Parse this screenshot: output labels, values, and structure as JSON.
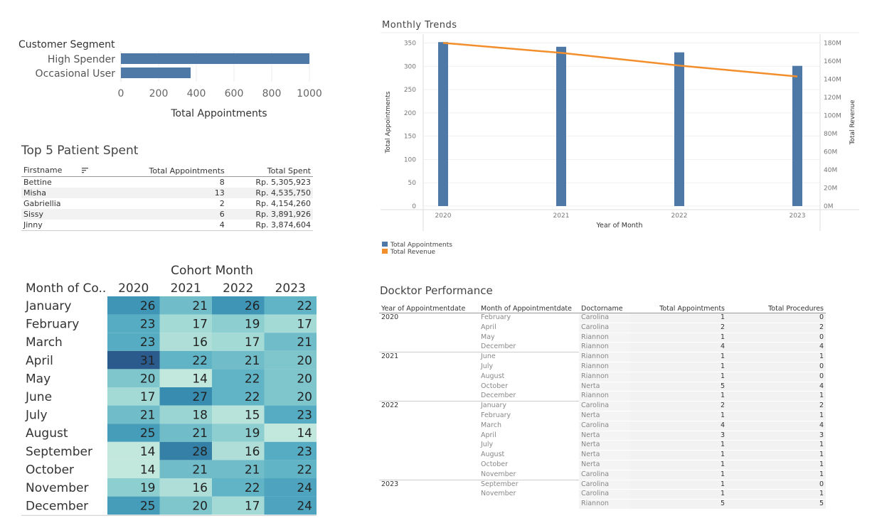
{
  "segment_chart": {
    "title": "Customer Segment",
    "xlabel": "Total Appointments",
    "color": "#4e79a7"
  },
  "top5": {
    "title": "Top 5 Patient Spent",
    "headers": {
      "firstname": "Firstname",
      "appointments": "Total Appointments",
      "spent": "Total Spent"
    },
    "sort_icon": "sort-icon",
    "rows": [
      {
        "firstname": "Bettine",
        "appointments": "8",
        "spent": "Rp. 5,305,923"
      },
      {
        "firstname": "Misha",
        "appointments": "13",
        "spent": "Rp. 4,535,750"
      },
      {
        "firstname": "Gabriellia",
        "appointments": "2",
        "spent": "Rp. 4,154,260"
      },
      {
        "firstname": "Sissy",
        "appointments": "6",
        "spent": "Rp. 3,891,926"
      },
      {
        "firstname": "Jinny",
        "appointments": "4",
        "spent": "Rp. 3,874,604"
      }
    ]
  },
  "cohort": {
    "title": "Cohort Month",
    "row_header": "Month of Co..",
    "colors": {
      "low": "#c2e7dc",
      "high": "#2b5b8c"
    }
  },
  "trends": {
    "title": "Monthly Trends",
    "xlabel": "Year of Month",
    "ylabel_left": "Total Appointments",
    "ylabel_right": "Total Revenue",
    "bar_color": "#4e79a7",
    "line_color": "#f28e2b",
    "legend": [
      {
        "label": "Total Appointments",
        "color": "#4e79a7"
      },
      {
        "label": "Total Revenue",
        "color": "#f28e2b"
      }
    ]
  },
  "doctor": {
    "title": "Docktor Performance",
    "headers": {
      "year": "Year of Appointmentdate",
      "month": "Month of Appointmentdate",
      "doctor": "Doctorname",
      "appointments": "Total Appointments",
      "procedures": "Total Procedures"
    },
    "groups": [
      {
        "year": "2020",
        "rows": [
          {
            "month": "February",
            "doctor": "Carolina",
            "appointments": "1",
            "procedures": "0"
          },
          {
            "month": "April",
            "doctor": "Carolina",
            "appointments": "2",
            "procedures": "2"
          },
          {
            "month": "May",
            "doctor": "Riannon",
            "appointments": "1",
            "procedures": "0"
          },
          {
            "month": "December",
            "doctor": "Riannon",
            "appointments": "4",
            "procedures": "4"
          }
        ]
      },
      {
        "year": "2021",
        "rows": [
          {
            "month": "June",
            "doctor": "Riannon",
            "appointments": "1",
            "procedures": "1"
          },
          {
            "month": "July",
            "doctor": "Riannon",
            "appointments": "1",
            "procedures": "0"
          },
          {
            "month": "August",
            "doctor": "Riannon",
            "appointments": "1",
            "procedures": "0"
          },
          {
            "month": "October",
            "doctor": "Nerta",
            "appointments": "5",
            "procedures": "4"
          },
          {
            "month": "December",
            "doctor": "Riannon",
            "appointments": "1",
            "procedures": "1"
          }
        ]
      },
      {
        "year": "2022",
        "rows": [
          {
            "month": "January",
            "doctor": "Carolina",
            "appointments": "2",
            "procedures": "2"
          },
          {
            "month": "February",
            "doctor": "Nerta",
            "appointments": "1",
            "procedures": "1"
          },
          {
            "month": "March",
            "doctor": "Carolina",
            "appointments": "4",
            "procedures": "4"
          },
          {
            "month": "April",
            "doctor": "Nerta",
            "appointments": "3",
            "procedures": "3"
          },
          {
            "month": "July",
            "doctor": "Nerta",
            "appointments": "1",
            "procedures": "1"
          },
          {
            "month": "August",
            "doctor": "Nerta",
            "appointments": "1",
            "procedures": "1"
          },
          {
            "month": "October",
            "doctor": "Nerta",
            "appointments": "1",
            "procedures": "1"
          },
          {
            "month": "November",
            "doctor": "Carolina",
            "appointments": "1",
            "procedures": "1"
          }
        ]
      },
      {
        "year": "2023",
        "rows": [
          {
            "month": "September",
            "doctor": "Carolina",
            "appointments": "1",
            "procedures": "0"
          },
          {
            "month": "November",
            "doctor": "Carolina",
            "appointments": "1",
            "procedures": "1"
          },
          {
            "month": "",
            "doctor": "Riannon",
            "appointments": "5",
            "procedures": "5"
          }
        ]
      }
    ]
  },
  "chart_data": [
    {
      "type": "bar",
      "orientation": "horizontal",
      "title": "Customer Segment",
      "categories": [
        "High Spender",
        "Occasional User"
      ],
      "values": [
        1000,
        370
      ],
      "xlabel": "Total Appointments",
      "xticks": [
        0,
        200,
        400,
        600,
        800,
        1000
      ],
      "xlim": [
        0,
        1000
      ],
      "grid": true
    },
    {
      "type": "heatmap",
      "title": "Cohort Month",
      "row_header": "Month of Co..",
      "columns": [
        "2020",
        "2021",
        "2022",
        "2023"
      ],
      "rows": [
        "January",
        "February",
        "March",
        "April",
        "May",
        "June",
        "July",
        "August",
        "September",
        "October",
        "November",
        "December"
      ],
      "values": [
        [
          26,
          21,
          26,
          22
        ],
        [
          23,
          17,
          19,
          17
        ],
        [
          23,
          16,
          17,
          21
        ],
        [
          31,
          22,
          21,
          20
        ],
        [
          20,
          14,
          22,
          20
        ],
        [
          17,
          27,
          22,
          20
        ],
        [
          21,
          18,
          15,
          23
        ],
        [
          25,
          21,
          19,
          14
        ],
        [
          14,
          28,
          16,
          23
        ],
        [
          14,
          21,
          21,
          22
        ],
        [
          19,
          16,
          22,
          24
        ],
        [
          25,
          20,
          17,
          24
        ]
      ],
      "value_range": [
        14,
        31
      ]
    },
    {
      "type": "bar",
      "title": "Monthly Trends",
      "xlabel": "Year of Month",
      "categories": [
        "2020",
        "2021",
        "2022",
        "2023"
      ],
      "series": [
        {
          "name": "Total Appointments",
          "kind": "bar",
          "axis": "left",
          "values": [
            352,
            342,
            330,
            301
          ]
        },
        {
          "name": "Total Revenue",
          "kind": "line",
          "axis": "right",
          "values": [
            180000000,
            169000000,
            155000000,
            143000000
          ]
        }
      ],
      "ylabel": "Total Appointments",
      "ylabel_right": "Total Revenue",
      "ylim": [
        0,
        360
      ],
      "yticks": [
        0,
        50,
        100,
        150,
        200,
        250,
        300,
        350
      ],
      "ylim_right": [
        0,
        185000000
      ],
      "yticks_right": [
        "0M",
        "20M",
        "40M",
        "60M",
        "80M",
        "100M",
        "120M",
        "140M",
        "160M",
        "180M"
      ],
      "legend": "bottom-left",
      "grid": true
    }
  ]
}
